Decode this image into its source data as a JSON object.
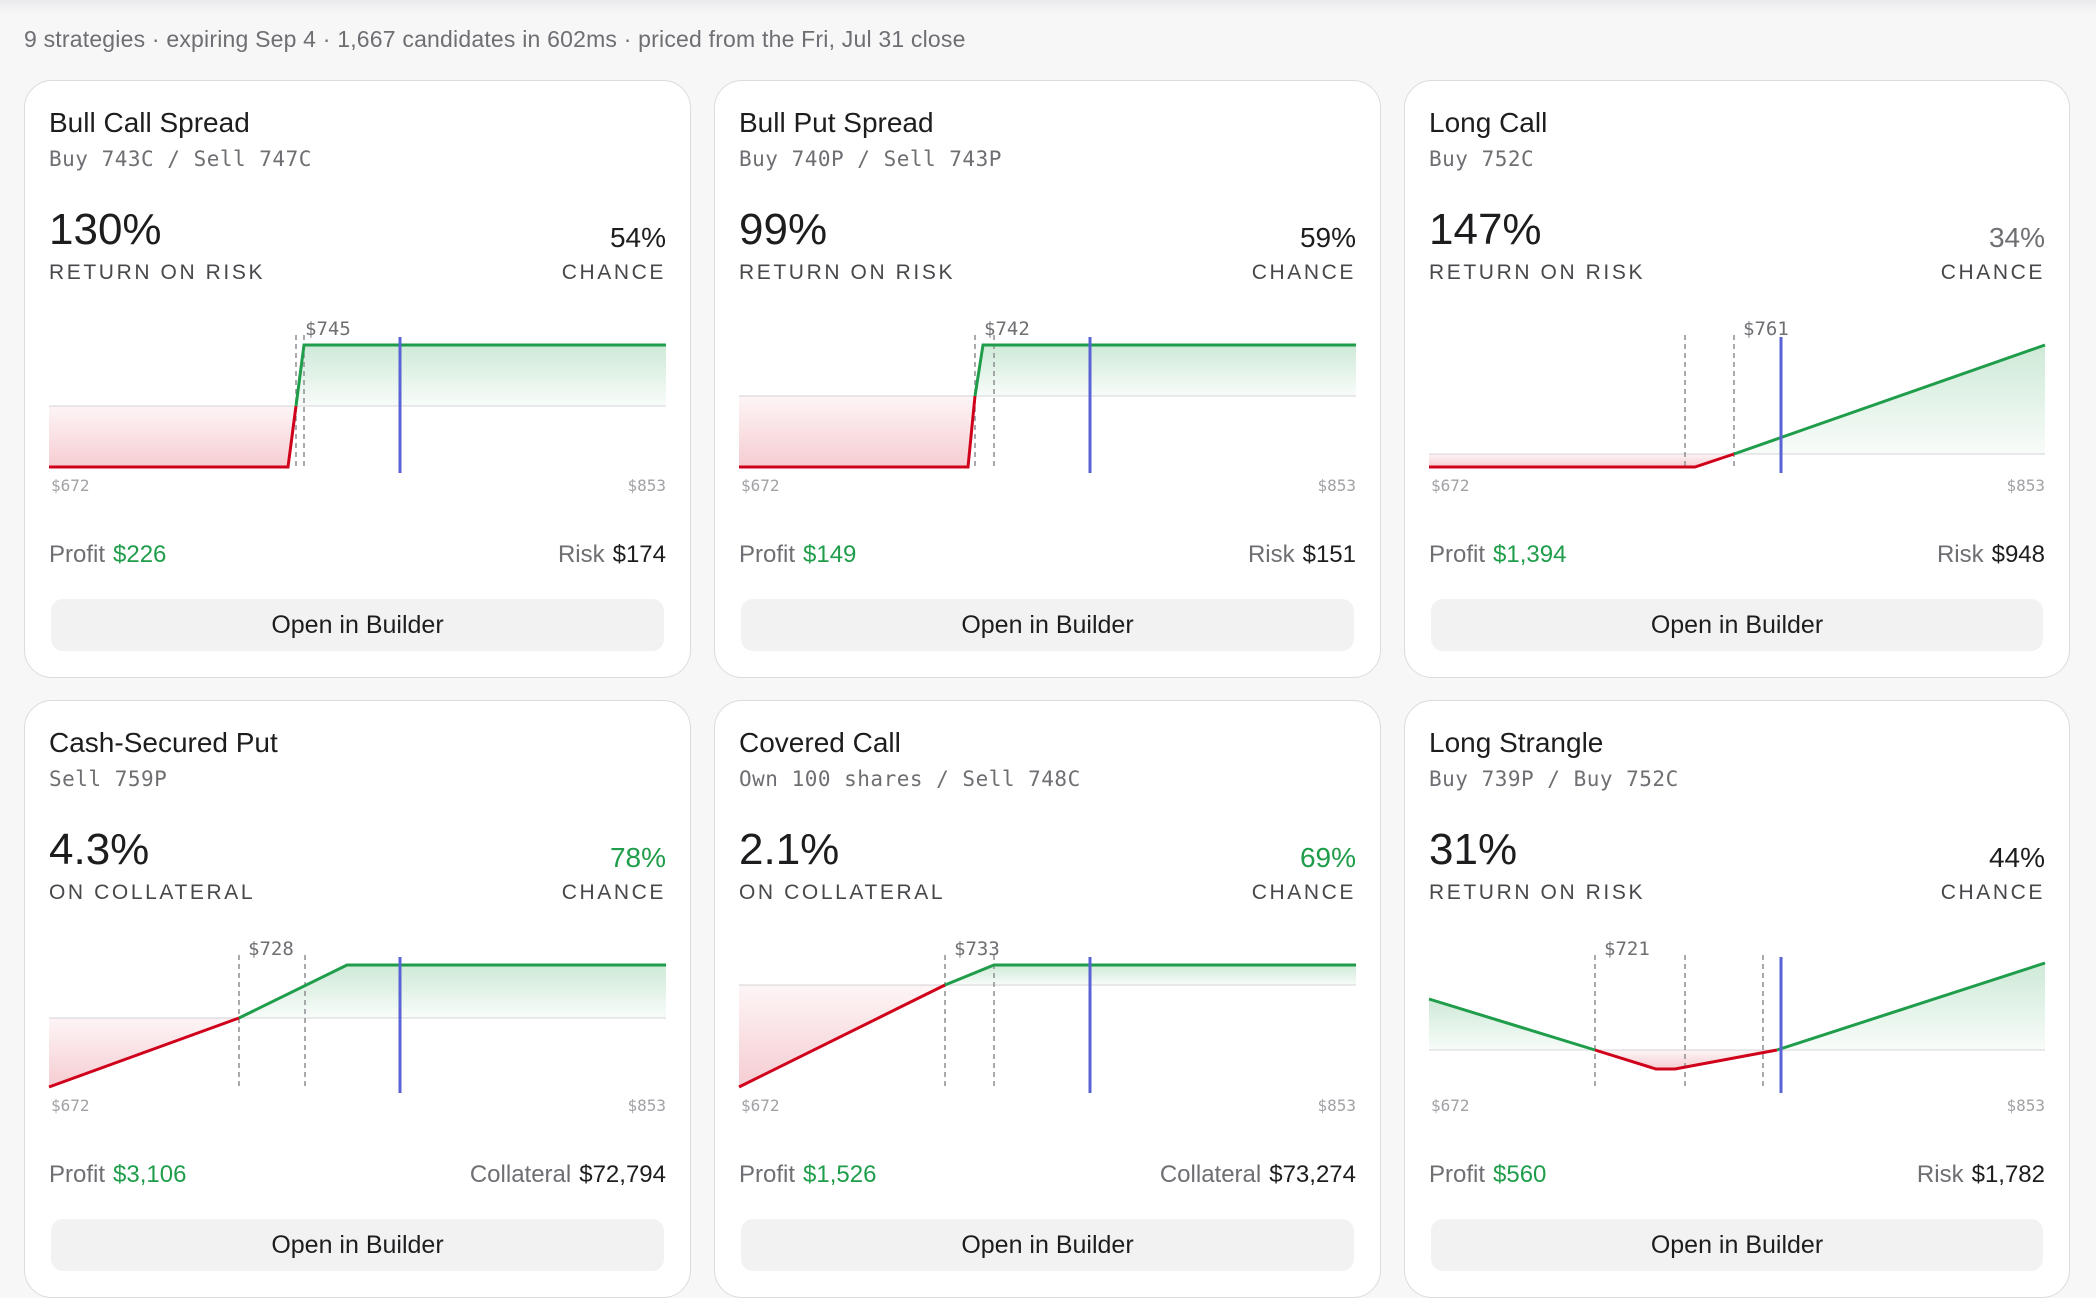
{
  "summary": "9 strategies · expiring Sep 4 · 1,667 candidates in 602ms · priced from the Fri, Jul 31 close",
  "colors": {
    "profit": "#1f9d4a",
    "loss": "#d0021b",
    "spot": "#5a63d6"
  },
  "cards": [
    {
      "title": "Bull Call Spread",
      "legs": "Buy 743C / Sell 747C",
      "metric_value": "130%",
      "metric_label": "RETURN ON RISK",
      "chance_value": "54%",
      "chance_label": "CHANCE",
      "chance_style": "normal",
      "chart": {
        "x_min_label": "$672",
        "x_max_label": "$853",
        "strike_label": "$745"
      },
      "profit_label": "Profit",
      "profit_value": "$226",
      "risk_label": "Risk",
      "risk_value": "$174",
      "button": "Open in Builder"
    },
    {
      "title": "Bull Put Spread",
      "legs": "Buy 740P / Sell 743P",
      "metric_value": "99%",
      "metric_label": "RETURN ON RISK",
      "chance_value": "59%",
      "chance_label": "CHANCE",
      "chance_style": "normal",
      "chart": {
        "x_min_label": "$672",
        "x_max_label": "$853",
        "strike_label": "$742"
      },
      "profit_label": "Profit",
      "profit_value": "$149",
      "risk_label": "Risk",
      "risk_value": "$151",
      "button": "Open in Builder"
    },
    {
      "title": "Long Call",
      "legs": "Buy 752C",
      "metric_value": "147%",
      "metric_label": "RETURN ON RISK",
      "chance_value": "34%",
      "chance_label": "CHANCE",
      "chance_style": "muted",
      "chart": {
        "x_min_label": "$672",
        "x_max_label": "$853",
        "strike_label": "$761"
      },
      "profit_label": "Profit",
      "profit_value": "$1,394",
      "risk_label": "Risk",
      "risk_value": "$948",
      "button": "Open in Builder"
    },
    {
      "title": "Cash-Secured Put",
      "legs": "Sell 759P",
      "metric_value": "4.3%",
      "metric_label": "ON COLLATERAL",
      "chance_value": "78%",
      "chance_label": "CHANCE",
      "chance_style": "green",
      "chart": {
        "x_min_label": "$672",
        "x_max_label": "$853",
        "strike_label": "$728"
      },
      "profit_label": "Profit",
      "profit_value": "$3,106",
      "risk_label": "Collateral",
      "risk_value": "$72,794",
      "button": "Open in Builder"
    },
    {
      "title": "Covered Call",
      "legs": "Own 100 shares / Sell 748C",
      "metric_value": "2.1%",
      "metric_label": "ON COLLATERAL",
      "chance_value": "69%",
      "chance_label": "CHANCE",
      "chance_style": "green",
      "chart": {
        "x_min_label": "$672",
        "x_max_label": "$853",
        "strike_label": "$733"
      },
      "profit_label": "Profit",
      "profit_value": "$1,526",
      "risk_label": "Collateral",
      "risk_value": "$73,274",
      "button": "Open in Builder"
    },
    {
      "title": "Long Strangle",
      "legs": "Buy 739P / Buy 752C",
      "metric_value": "31%",
      "metric_label": "RETURN ON RISK",
      "chance_value": "44%",
      "chance_label": "CHANCE",
      "chance_style": "normal",
      "chart": {
        "x_min_label": "$672",
        "x_max_label": "$853",
        "strike_label": "$721"
      },
      "profit_label": "Profit",
      "profit_value": "$560",
      "risk_label": "Risk",
      "risk_value": "$1,782",
      "button": "Open in Builder"
    }
  ]
}
